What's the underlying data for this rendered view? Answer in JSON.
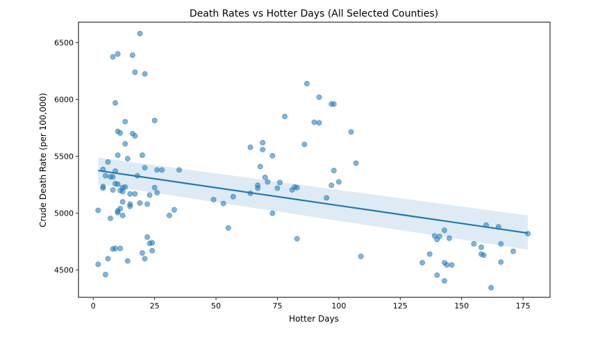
{
  "chart_data": {
    "type": "scatter",
    "title": "Death Rates vs Hotter Days (All Selected Counties)",
    "xlabel": "Hotter Days",
    "ylabel": "Crude Death Rate (per 100,000)",
    "xlim": [
      -6,
      186
    ],
    "ylim": [
      4260,
      6680
    ],
    "xticks": [
      0,
      25,
      50,
      75,
      100,
      125,
      150,
      175
    ],
    "yticks": [
      4500,
      5000,
      5500,
      6000,
      6500
    ],
    "grid": false,
    "colors": {
      "points": "#1f77b4",
      "line": "#1f77b4",
      "band": "#1f77b4"
    },
    "regression": {
      "x": [
        2,
        177
      ],
      "y": [
        5375,
        4825
      ],
      "ci_upper": [
        5490,
        4980
      ],
      "ci_lower": [
        5255,
        4680
      ]
    },
    "points": [
      {
        "x": 2,
        "y": 5025
      },
      {
        "x": 2,
        "y": 4550
      },
      {
        "x": 4,
        "y": 5385
      },
      {
        "x": 4,
        "y": 5220
      },
      {
        "x": 4,
        "y": 5235
      },
      {
        "x": 5,
        "y": 5330
      },
      {
        "x": 5,
        "y": 4460
      },
      {
        "x": 6,
        "y": 4600
      },
      {
        "x": 6,
        "y": 5450
      },
      {
        "x": 7,
        "y": 5320
      },
      {
        "x": 7,
        "y": 4955
      },
      {
        "x": 8,
        "y": 5320
      },
      {
        "x": 8,
        "y": 5205
      },
      {
        "x": 8,
        "y": 6375
      },
      {
        "x": 8,
        "y": 4685
      },
      {
        "x": 9,
        "y": 5970
      },
      {
        "x": 9,
        "y": 5370
      },
      {
        "x": 9,
        "y": 5260
      },
      {
        "x": 9,
        "y": 4690
      },
      {
        "x": 10,
        "y": 6400
      },
      {
        "x": 10,
        "y": 5720
      },
      {
        "x": 10,
        "y": 5510
      },
      {
        "x": 10,
        "y": 5255
      },
      {
        "x": 10,
        "y": 5020
      },
      {
        "x": 10,
        "y": 5005
      },
      {
        "x": 11,
        "y": 5705
      },
      {
        "x": 11,
        "y": 5200
      },
      {
        "x": 11,
        "y": 5040
      },
      {
        "x": 11,
        "y": 4690
      },
      {
        "x": 12,
        "y": 5225
      },
      {
        "x": 12,
        "y": 5190
      },
      {
        "x": 12,
        "y": 5100
      },
      {
        "x": 12,
        "y": 4980
      },
      {
        "x": 13,
        "y": 5805
      },
      {
        "x": 13,
        "y": 5610
      },
      {
        "x": 13,
        "y": 5230
      },
      {
        "x": 14,
        "y": 5480
      },
      {
        "x": 14,
        "y": 4580
      },
      {
        "x": 15,
        "y": 5170
      },
      {
        "x": 15,
        "y": 5080
      },
      {
        "x": 15,
        "y": 5060
      },
      {
        "x": 16,
        "y": 6390
      },
      {
        "x": 16,
        "y": 5700
      },
      {
        "x": 17,
        "y": 5170
      },
      {
        "x": 17,
        "y": 6240
      },
      {
        "x": 17,
        "y": 5680
      },
      {
        "x": 18,
        "y": 5330
      },
      {
        "x": 19,
        "y": 6580
      },
      {
        "x": 19,
        "y": 5090
      },
      {
        "x": 20,
        "y": 5510
      },
      {
        "x": 20,
        "y": 4650
      },
      {
        "x": 21,
        "y": 6225
      },
      {
        "x": 21,
        "y": 4600
      },
      {
        "x": 21,
        "y": 5400
      },
      {
        "x": 22,
        "y": 4790
      },
      {
        "x": 22,
        "y": 5080
      },
      {
        "x": 23,
        "y": 5160
      },
      {
        "x": 23,
        "y": 4735
      },
      {
        "x": 24,
        "y": 4740
      },
      {
        "x": 24,
        "y": 4670
      },
      {
        "x": 25,
        "y": 5815
      },
      {
        "x": 25,
        "y": 5225
      },
      {
        "x": 26,
        "y": 5380
      },
      {
        "x": 26,
        "y": 5180
      },
      {
        "x": 28,
        "y": 5380
      },
      {
        "x": 31,
        "y": 4980
      },
      {
        "x": 33,
        "y": 5030
      },
      {
        "x": 35,
        "y": 5380
      },
      {
        "x": 49,
        "y": 5120
      },
      {
        "x": 53,
        "y": 5085
      },
      {
        "x": 55,
        "y": 4870
      },
      {
        "x": 57,
        "y": 5145
      },
      {
        "x": 64,
        "y": 5175
      },
      {
        "x": 64,
        "y": 5580
      },
      {
        "x": 67,
        "y": 5220
      },
      {
        "x": 67,
        "y": 5245
      },
      {
        "x": 68,
        "y": 5410
      },
      {
        "x": 69,
        "y": 5560
      },
      {
        "x": 69,
        "y": 5620
      },
      {
        "x": 70,
        "y": 5315
      },
      {
        "x": 71,
        "y": 5275
      },
      {
        "x": 73,
        "y": 5505
      },
      {
        "x": 73,
        "y": 5000
      },
      {
        "x": 75,
        "y": 5220
      },
      {
        "x": 76,
        "y": 5270
      },
      {
        "x": 78,
        "y": 5850
      },
      {
        "x": 81,
        "y": 5205
      },
      {
        "x": 82,
        "y": 5230
      },
      {
        "x": 83,
        "y": 5225
      },
      {
        "x": 83,
        "y": 4775
      },
      {
        "x": 86,
        "y": 5605
      },
      {
        "x": 87,
        "y": 6140
      },
      {
        "x": 90,
        "y": 5800
      },
      {
        "x": 92,
        "y": 5795
      },
      {
        "x": 92,
        "y": 6020
      },
      {
        "x": 95,
        "y": 5135
      },
      {
        "x": 97,
        "y": 5960
      },
      {
        "x": 97,
        "y": 5245
      },
      {
        "x": 98,
        "y": 5960
      },
      {
        "x": 98,
        "y": 5375
      },
      {
        "x": 100,
        "y": 5275
      },
      {
        "x": 105,
        "y": 5715
      },
      {
        "x": 107,
        "y": 5440
      },
      {
        "x": 109,
        "y": 4620
      },
      {
        "x": 134,
        "y": 4565
      },
      {
        "x": 137,
        "y": 4640
      },
      {
        "x": 139,
        "y": 4800
      },
      {
        "x": 140,
        "y": 4770
      },
      {
        "x": 140,
        "y": 4455
      },
      {
        "x": 141,
        "y": 4795
      },
      {
        "x": 143,
        "y": 4850
      },
      {
        "x": 143,
        "y": 4565
      },
      {
        "x": 143,
        "y": 4405
      },
      {
        "x": 144,
        "y": 4545
      },
      {
        "x": 145,
        "y": 4780
      },
      {
        "x": 146,
        "y": 4545
      },
      {
        "x": 155,
        "y": 4730
      },
      {
        "x": 158,
        "y": 4700
      },
      {
        "x": 158,
        "y": 4640
      },
      {
        "x": 159,
        "y": 4630
      },
      {
        "x": 160,
        "y": 4895
      },
      {
        "x": 162,
        "y": 4345
      },
      {
        "x": 165,
        "y": 4880
      },
      {
        "x": 166,
        "y": 4570
      },
      {
        "x": 166,
        "y": 4730
      },
      {
        "x": 171,
        "y": 4665
      },
      {
        "x": 177,
        "y": 4820
      }
    ]
  }
}
